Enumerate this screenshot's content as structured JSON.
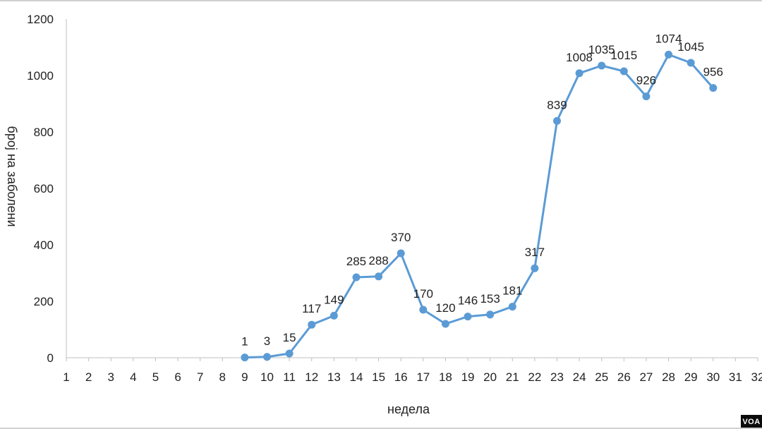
{
  "chart_data": {
    "type": "line",
    "title": "",
    "xlabel": "недела",
    "ylabel": "број на заболени",
    "x_ticks": [
      1,
      2,
      3,
      4,
      5,
      6,
      7,
      8,
      9,
      10,
      11,
      12,
      13,
      14,
      15,
      16,
      17,
      18,
      19,
      20,
      21,
      22,
      23,
      24,
      25,
      26,
      27,
      28,
      29,
      30,
      31,
      32
    ],
    "y_ticks": [
      0,
      200,
      400,
      600,
      800,
      1000,
      1200
    ],
    "xlim": [
      1,
      32
    ],
    "ylim": [
      0,
      1200
    ],
    "grid": false,
    "series": [
      {
        "color": "#5b9bd5",
        "x": [
          9,
          10,
          11,
          12,
          13,
          14,
          15,
          16,
          17,
          18,
          19,
          20,
          21,
          22,
          23,
          24,
          25,
          26,
          27,
          28,
          29,
          30
        ],
        "values": [
          1,
          3,
          15,
          117,
          149,
          285,
          288,
          370,
          170,
          120,
          146,
          153,
          181,
          317,
          839,
          1008,
          1035,
          1015,
          926,
          1074,
          1045,
          956
        ]
      }
    ]
  },
  "badge": {
    "label": "VOA"
  }
}
